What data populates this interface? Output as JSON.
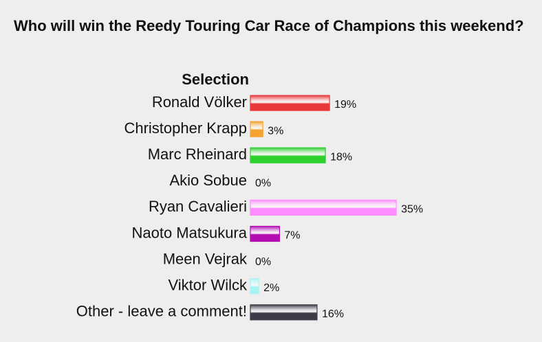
{
  "chart_data": {
    "type": "bar",
    "title": "Who will win the Reedy Touring Car Race of Champions this weekend?",
    "category_header": "Selection",
    "categories": [
      "Ronald Völker",
      "Christopher Krapp",
      "Marc Rheinard",
      "Akio Sobue",
      "Ryan Cavalieri",
      "Naoto Matsukura",
      "Meen Vejrak",
      "Viktor Wilck",
      "Other - leave a comment!"
    ],
    "values": [
      19,
      3,
      18,
      0,
      35,
      7,
      0,
      2,
      16
    ],
    "value_labels": [
      "19%",
      "3%",
      "18%",
      "0%",
      "35%",
      "7%",
      "0%",
      "2%",
      "16%"
    ],
    "colors": [
      "#e8383a",
      "#f5a22e",
      "#2fcf2f",
      "#3a3ad0",
      "#ff8cff",
      "#b30db3",
      "#d8d8d8",
      "#a8f4f4",
      "#3e3a48"
    ]
  }
}
